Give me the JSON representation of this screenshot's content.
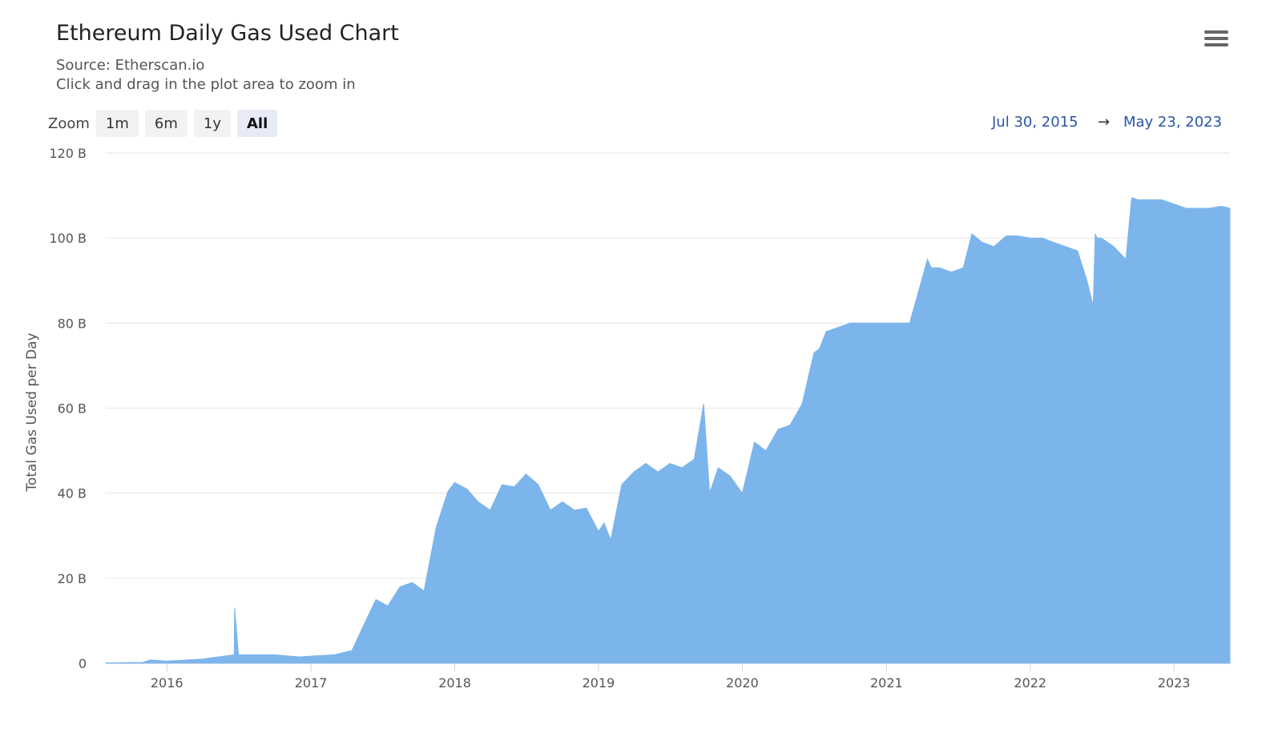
{
  "header": {
    "title": "Ethereum Daily Gas Used Chart",
    "source": "Source: Etherscan.io",
    "hint": "Click and drag in the plot area to zoom in"
  },
  "menu": {
    "icon": "hamburger-menu-icon"
  },
  "zoom": {
    "label": "Zoom",
    "buttons": [
      "1m",
      "6m",
      "1y",
      "All"
    ],
    "selected": "All"
  },
  "range": {
    "from": "Jul 30, 2015",
    "arrow": "→",
    "to": "May 23, 2023"
  },
  "colors": {
    "series": "#7cb5ec",
    "grid": "#e6e6e6",
    "range_text": "#2a55a8"
  },
  "chart_data": {
    "type": "area",
    "title": "Ethereum Daily Gas Used Chart",
    "subtitle": "Source: Etherscan.io",
    "ylabel": "Total Gas Used per Day",
    "xlabel": "",
    "ylim": [
      0,
      120000000000
    ],
    "y_ticks": [
      "0",
      "20 B",
      "40 B",
      "60 B",
      "80 B",
      "100 B",
      "120 B"
    ],
    "y_tick_values": [
      0,
      20,
      40,
      60,
      80,
      100,
      120
    ],
    "y_unit": "B",
    "x_ticks": [
      "2016",
      "2017",
      "2018",
      "2019",
      "2020",
      "2021",
      "2022",
      "2023"
    ],
    "x_range": [
      "2015-07-30",
      "2023-05-23"
    ],
    "grid": true,
    "legend": "none",
    "series": [
      {
        "values_in": "B",
        "x": [
          "2015-07-30",
          "2015-11-01",
          "2015-11-20",
          "2016-01-01",
          "2016-04-01",
          "2016-06-20",
          "2016-06-21",
          "2016-07-01",
          "2016-10-01",
          "2016-12-01",
          "2017-03-01",
          "2017-04-15",
          "2017-05-15",
          "2017-06-15",
          "2017-07-15",
          "2017-08-15",
          "2017-09-15",
          "2017-10-15",
          "2017-11-15",
          "2017-12-15",
          "2018-01-01",
          "2018-02-01",
          "2018-03-01",
          "2018-04-01",
          "2018-05-01",
          "2018-06-01",
          "2018-07-01",
          "2018-08-01",
          "2018-09-01",
          "2018-10-01",
          "2018-11-01",
          "2018-12-01",
          "2019-01-01",
          "2019-01-15",
          "2019-02-01",
          "2019-03-01",
          "2019-04-01",
          "2019-05-01",
          "2019-06-01",
          "2019-07-01",
          "2019-08-01",
          "2019-09-01",
          "2019-09-25",
          "2019-10-10",
          "2019-11-01",
          "2019-12-01",
          "2020-01-01",
          "2020-02-01",
          "2020-03-01",
          "2020-04-01",
          "2020-05-01",
          "2020-06-01",
          "2020-07-01",
          "2020-07-15",
          "2020-08-01",
          "2020-09-01",
          "2020-10-01",
          "2020-11-01",
          "2020-12-01",
          "2021-01-01",
          "2021-02-01",
          "2021-03-01",
          "2021-04-15",
          "2021-04-25",
          "2021-05-15",
          "2021-06-15",
          "2021-07-15",
          "2021-08-06",
          "2021-09-01",
          "2021-10-01",
          "2021-11-01",
          "2021-12-01",
          "2022-01-01",
          "2022-02-01",
          "2022-03-01",
          "2022-04-01",
          "2022-05-01",
          "2022-05-25",
          "2022-06-10",
          "2022-06-15",
          "2022-06-20",
          "2022-07-01",
          "2022-08-01",
          "2022-09-01",
          "2022-09-15",
          "2022-09-17",
          "2022-10-01",
          "2022-11-01",
          "2022-12-01",
          "2023-01-01",
          "2023-02-01",
          "2023-03-01",
          "2023-04-01",
          "2023-05-01",
          "2023-05-23"
        ],
        "values": [
          0.1,
          0.2,
          0.8,
          0.5,
          1.0,
          2.0,
          13.0,
          2.0,
          2.0,
          1.5,
          2.0,
          3.0,
          9.0,
          15.0,
          13.5,
          18.0,
          19.0,
          17.0,
          32.0,
          40.5,
          42.5,
          41.0,
          38.0,
          36.0,
          42.0,
          41.5,
          44.5,
          42.0,
          36.0,
          38.0,
          36.0,
          36.5,
          31.0,
          33.0,
          29.0,
          42.0,
          45.0,
          47.0,
          45.0,
          47.0,
          46.0,
          48.0,
          61.0,
          40.0,
          46.0,
          44.0,
          40.0,
          52.0,
          50.0,
          55.0,
          56.0,
          61.0,
          73.0,
          74.0,
          78.0,
          79.0,
          80.0,
          80.0,
          80.0,
          80.0,
          80.0,
          80.0,
          95.0,
          93.0,
          93.0,
          92.0,
          93.0,
          101.0,
          99.0,
          98.0,
          100.5,
          100.5,
          100.0,
          100.0,
          99.0,
          98.0,
          97.0,
          90.0,
          84.0,
          101.0,
          100.0,
          100.0,
          98.0,
          95.0,
          109.0,
          109.5,
          109.0,
          109.0,
          109.0,
          108.0,
          107.0,
          107.0,
          107.0,
          107.5,
          107.0
        ]
      }
    ]
  }
}
